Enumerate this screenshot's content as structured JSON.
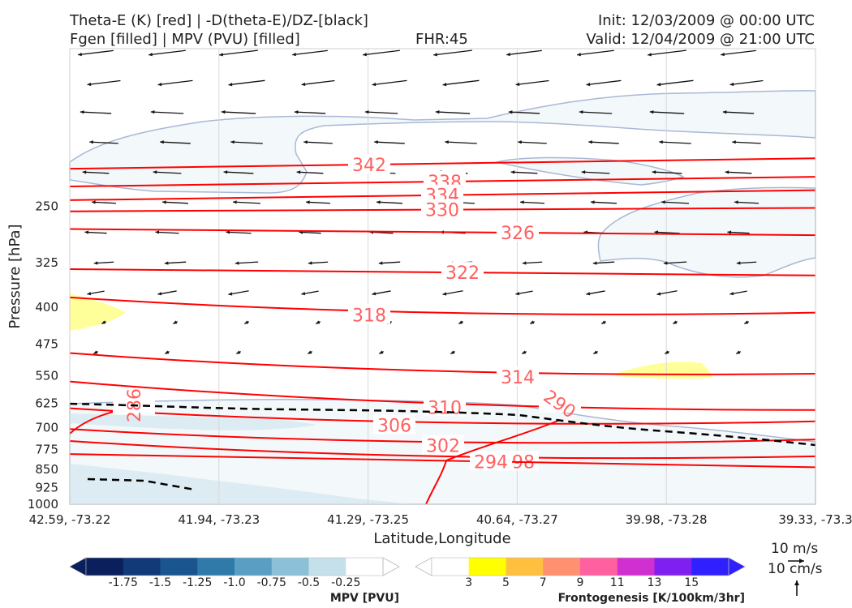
{
  "header": {
    "title_line1_left": "Theta-E (K) [red] | -D(theta-E)/DZ-[black]",
    "title_line2_left": "Fgen [filled] | MPV (PVU) [filled]",
    "fhr": "FHR:45",
    "init": "Init: 12/03/2009 @ 00:00 UTC",
    "valid": "Valid: 12/04/2009 @ 21:00 UTC"
  },
  "chart_data": {
    "type": "cross-section",
    "xlabel": "Latitude,Longitude",
    "ylabel": "Pressure [hPa]",
    "x_ticks": [
      "42.59, -73.22",
      "41.94, -73.23",
      "41.29, -73.25",
      "40.64, -73.27",
      "39.98, -73.28",
      "39.33, -73.3"
    ],
    "y_ticks": [
      250,
      325,
      400,
      475,
      550,
      625,
      700,
      775,
      850,
      925,
      1000
    ],
    "ylim": [
      1000,
      200
    ],
    "y_scale": "log-pressure",
    "theta_e_contours": [
      {
        "value": 342,
        "label": "342",
        "y_left": 210,
        "y_right": 200
      },
      {
        "value": 338,
        "label": "338",
        "y_left": 228,
        "y_right": 218
      },
      {
        "value": 334,
        "label": "334",
        "y_left": 243,
        "y_right": 232
      },
      {
        "value": 330,
        "label": "330",
        "y_left": 256,
        "y_right": 252
      },
      {
        "value": 326,
        "label": "326",
        "y_left": 278,
        "y_right": 286
      },
      {
        "value": 322,
        "label": "322",
        "y_left": 335,
        "y_right": 345
      },
      {
        "value": 318,
        "label": "318",
        "y_left": 382,
        "y_right": 410
      },
      {
        "value": 314,
        "label": "314",
        "y_left": 495,
        "y_right": 545
      },
      {
        "value": 310,
        "label": "310",
        "y_left": 565,
        "y_right": 645
      },
      {
        "value": 306,
        "label": "306",
        "y_left": 640,
        "y_right": 680
      },
      {
        "value": 302,
        "label": "302",
        "y_left": 705,
        "y_right": 740
      },
      {
        "value": 298,
        "label": "298",
        "y_left": 745,
        "y_right": 800
      },
      {
        "value": 294,
        "label": "294",
        "y_left": 792,
        "y_right": 842
      },
      {
        "value": 290,
        "label": "290",
        "y_left": 830,
        "y_right": 845
      },
      {
        "value": 286,
        "label": "286",
        "y_left": 850,
        "y_right": 850
      }
    ],
    "mpv_colorbar": {
      "label": "MPV [PVU]",
      "ticks": [
        "-1.75",
        "-1.5",
        "-1.25",
        "-1.0",
        "-0.75",
        "-0.5",
        "-0.25"
      ],
      "colors": [
        "#0a1f5c",
        "#123a79",
        "#1a5590",
        "#2f7aa8",
        "#5a9fc3",
        "#8cc0d8",
        "#c5e0ea",
        "#ffffff"
      ]
    },
    "fgen_colorbar": {
      "label": "Frontogenesis [K/100km/3hr]",
      "ticks": [
        "3",
        "5",
        "7",
        "9",
        "11",
        "13",
        "15"
      ],
      "colors": [
        "#ffffff",
        "#ffff00",
        "#ffc040",
        "#ff9070",
        "#ff60a0",
        "#d030d0",
        "#8020f0",
        "#3020ff"
      ]
    }
  },
  "vector_key": {
    "horizontal": "10 m/s",
    "vertical": "10 cm/s"
  },
  "colors": {
    "theta_e": "#ff0000",
    "theta_e_label": "#ff6060",
    "stability": "#000000",
    "mpv_fill": "#f3f8fa",
    "mpv_edge": "#a9b8d4",
    "fgen_fill": "#ffff99"
  }
}
